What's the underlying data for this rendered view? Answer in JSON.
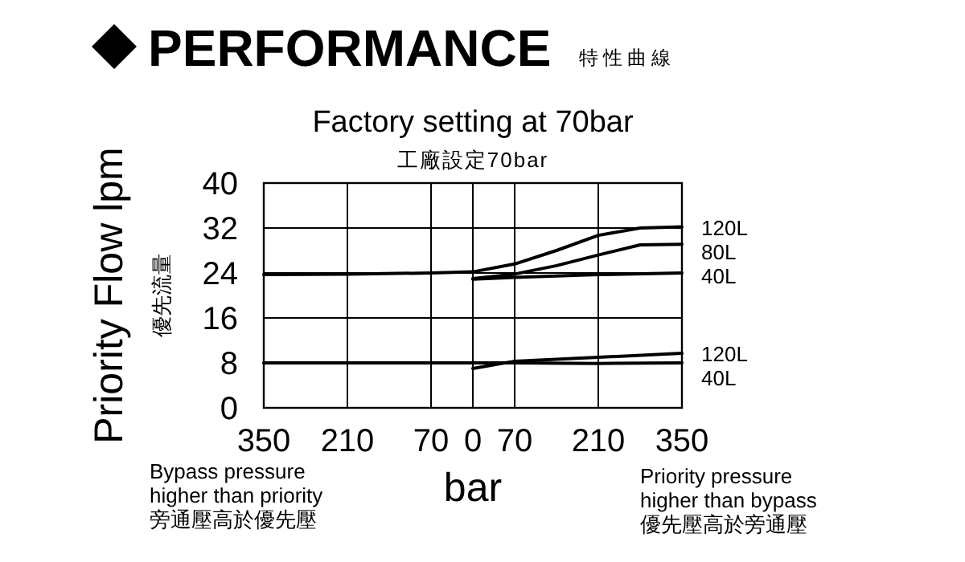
{
  "chart_data": {
    "type": "line",
    "title": "PERFORMANCE",
    "subtitle": "特性曲線",
    "xlabel": "bar",
    "ylabel": "Priority Flow  lpm",
    "annotations": [
      "Factory setting  at 70bar",
      "工廠設定70bar",
      "優先流量",
      "Bypass pressure\nhigher than priority\n旁通壓高於優先壓",
      "Priority pressure\nhigher than bypass\n優先壓高於旁通壓"
    ],
    "xlim": [
      -350,
      350
    ],
    "ylim": [
      0,
      40
    ],
    "xticks": [
      {
        "value": -350,
        "label": "350"
      },
      {
        "value": -210,
        "label": "210"
      },
      {
        "value": -70,
        "label": "70"
      },
      0,
      70,
      210,
      350
    ],
    "yticks": [
      0,
      8,
      16,
      24,
      32,
      40
    ],
    "grid": true,
    "series": [
      {
        "name": "120L",
        "color": "#000000",
        "x": [
          -350,
          -210,
          -70,
          0,
          70,
          140,
          210,
          280,
          350
        ],
        "values": [
          23.7,
          23.8,
          24,
          24.2,
          25.6,
          28,
          30.7,
          32,
          32.2
        ]
      },
      {
        "name": "80L",
        "color": "#000000",
        "x": [
          0,
          70,
          140,
          210,
          280,
          350
        ],
        "values": [
          23,
          23.8,
          25.3,
          27.2,
          29,
          29.1
        ]
      },
      {
        "name": "40L",
        "color": "#000000",
        "x": [
          0,
          70,
          210,
          350
        ],
        "values": [
          22.9,
          23.2,
          23.7,
          24
        ]
      },
      {
        "name": "120L",
        "color": "#000000",
        "x": [
          0,
          70,
          210,
          350
        ],
        "values": [
          7,
          8.3,
          9,
          9.7
        ]
      },
      {
        "name": "40L",
        "color": "#000000",
        "x": [
          -350,
          -210,
          -70,
          0,
          70,
          210,
          350
        ],
        "values": [
          8,
          8,
          8,
          8,
          8,
          7.9,
          8
        ]
      }
    ]
  }
}
